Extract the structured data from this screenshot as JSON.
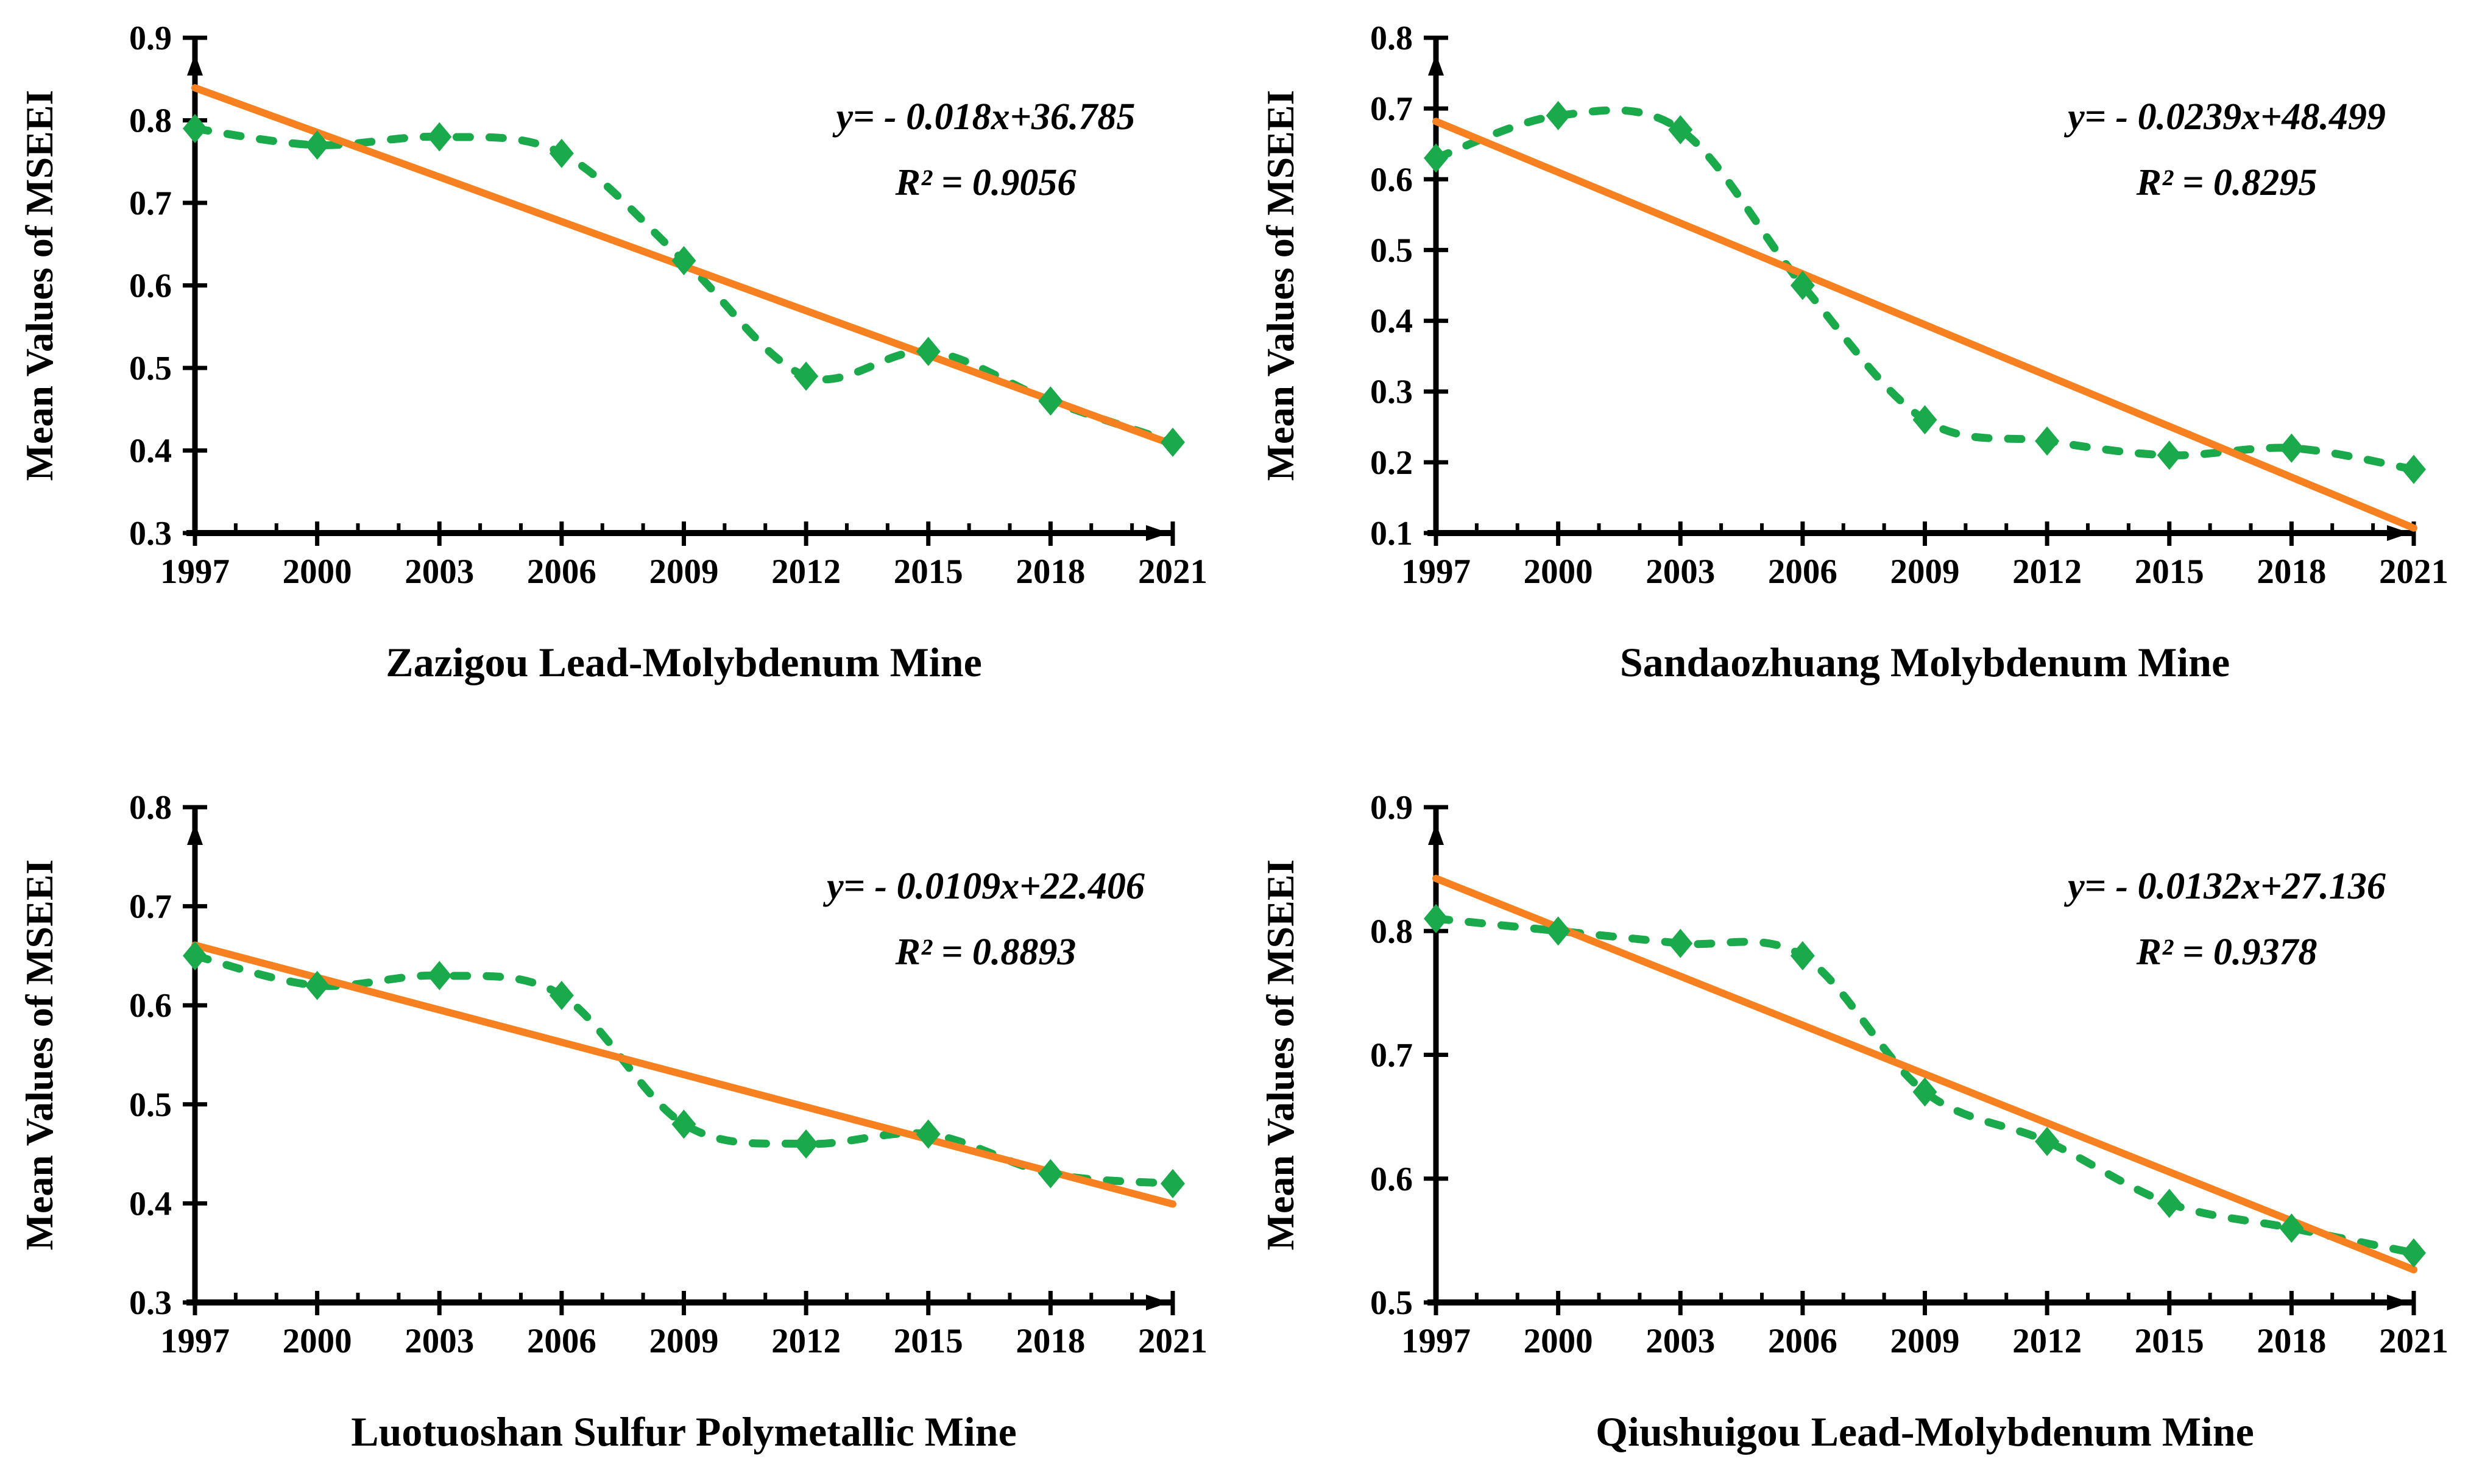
{
  "colors": {
    "series_green": "#1AA94B",
    "trend_orange": "#F78121",
    "axis_black": "#000000",
    "background": "#FFFFFF"
  },
  "ylabel_shared": "Mean Values of MSEEI",
  "chart_data": [
    {
      "id": "zazigou",
      "type": "line",
      "title": "Zazigou Lead-Molybdenum Mine",
      "ylabel": "Mean Values of MSEEI",
      "xlabel": "",
      "equation": "y= - 0.018x+36.785",
      "r2_label": "R² = 0.9056",
      "categories": [
        1997,
        2000,
        2003,
        2006,
        2009,
        2012,
        2015,
        2018,
        2021
      ],
      "values": [
        0.79,
        0.77,
        0.78,
        0.76,
        0.63,
        0.49,
        0.52,
        0.46,
        0.41
      ],
      "ylim": [
        0.3,
        0.9
      ],
      "ytick_labels": [
        "0.3",
        "0.4",
        "0.5",
        "0.6",
        "0.7",
        "0.8",
        "0.9"
      ],
      "ytick_step": 0.1,
      "x_minor_step_years": 1,
      "grid": false,
      "legend": "none",
      "series": [
        {
          "role": "data",
          "line": "dashed-smooth",
          "marker": "diamond",
          "color": "#1AA94B"
        },
        {
          "role": "linear-trend",
          "line": "solid",
          "marker": "none",
          "color": "#F78121"
        }
      ]
    },
    {
      "id": "sandaozhuang",
      "type": "line",
      "title": "Sandaozhuang Molybdenum Mine",
      "ylabel": "Mean Values of MSEEI",
      "xlabel": "",
      "equation": "y= - 0.0239x+48.499",
      "r2_label": "R² = 0.8295",
      "categories": [
        1997,
        2000,
        2003,
        2006,
        2009,
        2012,
        2015,
        2018,
        2021
      ],
      "values": [
        0.63,
        0.69,
        0.67,
        0.45,
        0.26,
        0.23,
        0.21,
        0.22,
        0.19
      ],
      "ylim": [
        0.1,
        0.8
      ],
      "ytick_labels": [
        "0.1",
        "0.2",
        "0.3",
        "0.4",
        "0.5",
        "0.6",
        "0.7",
        "0.8"
      ],
      "ytick_step": 0.1,
      "x_minor_step_years": 1,
      "grid": false,
      "legend": "none",
      "series": [
        {
          "role": "data",
          "line": "dashed-smooth",
          "marker": "diamond",
          "color": "#1AA94B"
        },
        {
          "role": "linear-trend",
          "line": "solid",
          "marker": "none",
          "color": "#F78121"
        }
      ]
    },
    {
      "id": "luotuoshan",
      "type": "line",
      "title": "Luotuoshan Sulfur Polymetallic Mine",
      "ylabel": "Mean Values of MSEEI",
      "xlabel": "",
      "equation": "y= - 0.0109x+22.406",
      "r2_label": "R² = 0.8893",
      "categories": [
        1997,
        2000,
        2003,
        2006,
        2009,
        2012,
        2015,
        2018,
        2021
      ],
      "values": [
        0.65,
        0.62,
        0.63,
        0.61,
        0.48,
        0.46,
        0.47,
        0.43,
        0.42
      ],
      "ylim": [
        0.3,
        0.8
      ],
      "ytick_labels": [
        "0.3",
        "0.4",
        "0.5",
        "0.6",
        "0.7",
        "0.8"
      ],
      "ytick_step": 0.1,
      "x_minor_step_years": 1,
      "grid": false,
      "legend": "none",
      "series": [
        {
          "role": "data",
          "line": "dashed-smooth",
          "marker": "diamond",
          "color": "#1AA94B"
        },
        {
          "role": "linear-trend",
          "line": "solid",
          "marker": "none",
          "color": "#F78121"
        }
      ]
    },
    {
      "id": "qiushuigou",
      "type": "line",
      "title": "Qiushuigou Lead-Molybdenum Mine",
      "ylabel": "Mean Values of MSEEI",
      "xlabel": "",
      "equation": "y= - 0.0132x+27.136",
      "r2_label": "R² = 0.9378",
      "categories": [
        1997,
        2000,
        2003,
        2006,
        2009,
        2012,
        2015,
        2018,
        2021
      ],
      "values": [
        0.81,
        0.8,
        0.79,
        0.78,
        0.67,
        0.63,
        0.58,
        0.56,
        0.54
      ],
      "ylim": [
        0.5,
        0.9
      ],
      "ytick_labels": [
        "0.5",
        "0.6",
        "0.7",
        "0.8",
        "0.9"
      ],
      "ytick_step": 0.1,
      "x_minor_step_years": 1,
      "grid": false,
      "legend": "none",
      "series": [
        {
          "role": "data",
          "line": "dashed-smooth",
          "marker": "diamond",
          "color": "#1AA94B"
        },
        {
          "role": "linear-trend",
          "line": "solid",
          "marker": "none",
          "color": "#F78121"
        }
      ]
    }
  ]
}
